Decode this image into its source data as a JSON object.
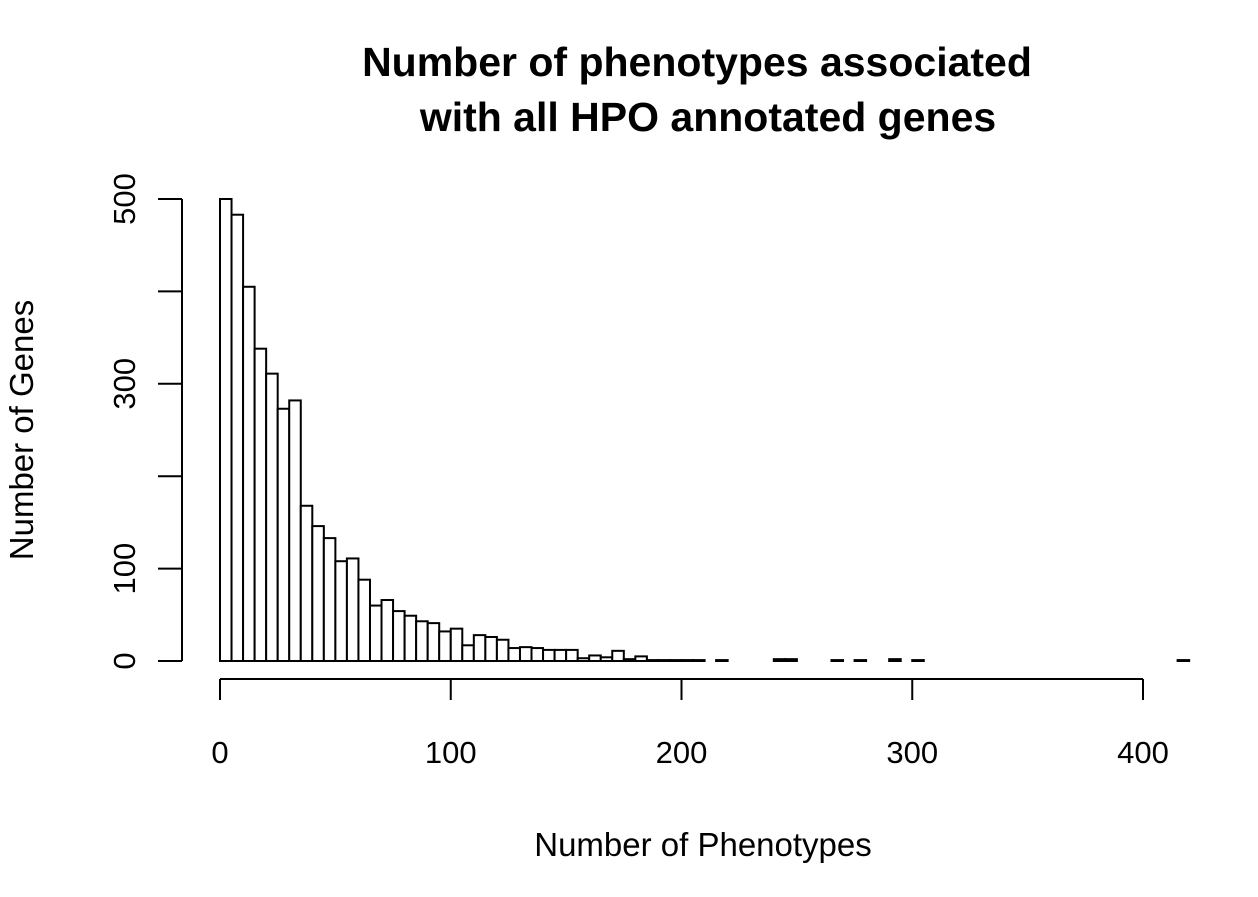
{
  "chart_data": {
    "type": "bar",
    "subtype": "histogram",
    "title": [
      "Number of phenotypes associated",
      "with all HPO annotated genes"
    ],
    "xlabel": "Number of Phenotypes",
    "ylabel": "Number of Genes",
    "xlim": [
      0,
      420
    ],
    "ylim": [
      0,
      500
    ],
    "x_ticks": [
      0,
      100,
      200,
      300,
      400
    ],
    "x_tick_labels": [
      "0",
      "100",
      "200",
      "300",
      "400"
    ],
    "y_ticks": [
      0,
      100,
      200,
      300,
      400,
      500
    ],
    "y_tick_labels": [
      "0",
      "100",
      "",
      "300",
      "",
      "500"
    ],
    "bin_width": 5,
    "bin_start": 0,
    "values": [
      500,
      483,
      405,
      338,
      311,
      273,
      282,
      168,
      146,
      133,
      108,
      111,
      88,
      60,
      66,
      54,
      49,
      43,
      41,
      32,
      35,
      17,
      28,
      26,
      23,
      14,
      15,
      14,
      12,
      12,
      12,
      3,
      6,
      4,
      11,
      2,
      5,
      1,
      1,
      1,
      1,
      1,
      0,
      1,
      0,
      0,
      0,
      0,
      2,
      2,
      0,
      0,
      0,
      1,
      0,
      1,
      0,
      0,
      2,
      0,
      1,
      0,
      0,
      0,
      0,
      0,
      0,
      0,
      0,
      0,
      0,
      0,
      0,
      0,
      0,
      0,
      0,
      0,
      0,
      0,
      0,
      0,
      0,
      1
    ],
    "grid": false,
    "legend": null,
    "colors": {
      "bar_fill": "#ffffff",
      "bar_stroke": "#000000",
      "axis": "#000000"
    }
  }
}
